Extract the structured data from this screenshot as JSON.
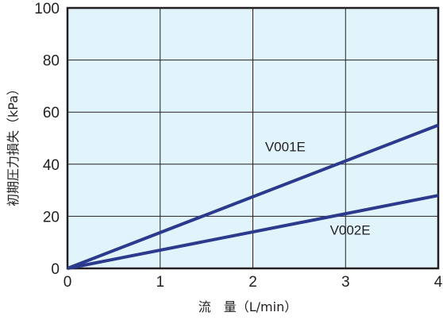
{
  "chart_data": {
    "type": "line",
    "title": "",
    "xlabel": "流　量（L/min）",
    "ylabel": "初期圧力損失（kPa）",
    "xlim": [
      0,
      4
    ],
    "ylim": [
      0,
      100
    ],
    "x_ticks": [
      "0",
      "1",
      "2",
      "3",
      "4"
    ],
    "y_ticks": [
      "0",
      "20",
      "40",
      "60",
      "80",
      "100"
    ],
    "grid": true,
    "series": [
      {
        "name": "V001E",
        "x": [
          0,
          4
        ],
        "y": [
          0,
          55
        ],
        "color": "#2b3a8c",
        "label_anchor": [
          2.35,
          45
        ]
      },
      {
        "name": "V002E",
        "x": [
          0,
          4
        ],
        "y": [
          0,
          28
        ],
        "color": "#2b3a8c",
        "label_anchor": [
          3.05,
          13
        ]
      }
    ],
    "colors": {
      "plot_background": "#e1f3fb",
      "grid": "#231f20",
      "frame": "#231f20"
    }
  }
}
